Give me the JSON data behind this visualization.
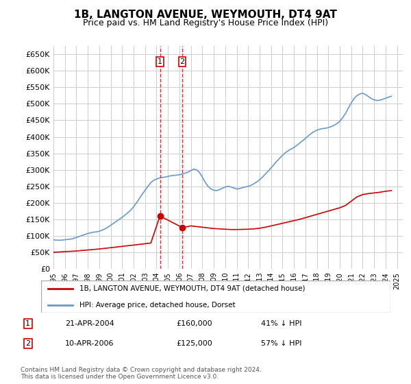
{
  "title": "1B, LANGTON AVENUE, WEYMOUTH, DT4 9AT",
  "subtitle": "Price paid vs. HM Land Registry's House Price Index (HPI)",
  "legend_label_red": "1B, LANGTON AVENUE, WEYMOUTH, DT4 9AT (detached house)",
  "legend_label_blue": "HPI: Average price, detached house, Dorset",
  "footnote": "Contains HM Land Registry data © Crown copyright and database right 2024.\nThis data is licensed under the Open Government Licence v3.0.",
  "point1_label": "1",
  "point1_date": "21-APR-2004",
  "point1_price": "£160,000",
  "point1_hpi": "41% ↓ HPI",
  "point2_label": "2",
  "point2_date": "10-APR-2006",
  "point2_price": "£125,000",
  "point2_hpi": "57% ↓ HPI",
  "ylim": [
    0,
    675000
  ],
  "yticks": [
    0,
    50000,
    100000,
    150000,
    200000,
    250000,
    300000,
    350000,
    400000,
    450000,
    500000,
    550000,
    600000,
    650000
  ],
  "xmin": 1995.0,
  "xmax": 2025.5,
  "sale1_year": 2004.3,
  "sale2_year": 2006.25,
  "sale1_price": 160000,
  "sale2_price": 125000,
  "red_color": "#cc0000",
  "blue_color": "#6699cc",
  "bg_color": "#ffffff",
  "grid_color": "#cccccc",
  "hpi_years": [
    1995.0,
    1995.25,
    1995.5,
    1995.75,
    1996.0,
    1996.25,
    1996.5,
    1996.75,
    1997.0,
    1997.25,
    1997.5,
    1997.75,
    1998.0,
    1998.25,
    1998.5,
    1998.75,
    1999.0,
    1999.25,
    1999.5,
    1999.75,
    2000.0,
    2000.25,
    2000.5,
    2000.75,
    2001.0,
    2001.25,
    2001.5,
    2001.75,
    2002.0,
    2002.25,
    2002.5,
    2002.75,
    2003.0,
    2003.25,
    2003.5,
    2003.75,
    2004.0,
    2004.25,
    2004.5,
    2004.75,
    2005.0,
    2005.25,
    2005.5,
    2005.75,
    2006.0,
    2006.25,
    2006.5,
    2006.75,
    2007.0,
    2007.25,
    2007.5,
    2007.75,
    2008.0,
    2008.25,
    2008.5,
    2008.75,
    2009.0,
    2009.25,
    2009.5,
    2009.75,
    2010.0,
    2010.25,
    2010.5,
    2010.75,
    2011.0,
    2011.25,
    2011.5,
    2011.75,
    2012.0,
    2012.25,
    2012.5,
    2012.75,
    2013.0,
    2013.25,
    2013.5,
    2013.75,
    2014.0,
    2014.25,
    2014.5,
    2014.75,
    2015.0,
    2015.25,
    2015.5,
    2015.75,
    2016.0,
    2016.25,
    2016.5,
    2016.75,
    2017.0,
    2017.25,
    2017.5,
    2017.75,
    2018.0,
    2018.25,
    2018.5,
    2018.75,
    2019.0,
    2019.25,
    2019.5,
    2019.75,
    2020.0,
    2020.25,
    2020.5,
    2020.75,
    2021.0,
    2021.25,
    2021.5,
    2021.75,
    2022.0,
    2022.25,
    2022.5,
    2022.75,
    2023.0,
    2023.25,
    2023.5,
    2023.75,
    2024.0,
    2024.25,
    2024.5
  ],
  "hpi_values": [
    88000,
    87000,
    86500,
    87000,
    88000,
    89000,
    90000,
    92000,
    95000,
    98000,
    101000,
    104000,
    107000,
    109000,
    111000,
    112000,
    114000,
    117000,
    121000,
    126000,
    132000,
    138000,
    144000,
    150000,
    156000,
    163000,
    170000,
    178000,
    188000,
    200000,
    213000,
    226000,
    238000,
    250000,
    261000,
    268000,
    272000,
    275000,
    277000,
    278000,
    280000,
    282000,
    283000,
    284000,
    285000,
    287000,
    290000,
    293000,
    298000,
    302000,
    300000,
    292000,
    278000,
    262000,
    250000,
    242000,
    238000,
    237000,
    240000,
    244000,
    248000,
    250000,
    248000,
    245000,
    242000,
    243000,
    246000,
    248000,
    250000,
    253000,
    258000,
    263000,
    270000,
    278000,
    287000,
    296000,
    306000,
    316000,
    326000,
    335000,
    344000,
    352000,
    358000,
    363000,
    368000,
    374000,
    381000,
    388000,
    395000,
    403000,
    410000,
    416000,
    420000,
    423000,
    425000,
    426000,
    428000,
    431000,
    435000,
    440000,
    447000,
    458000,
    471000,
    487000,
    503000,
    516000,
    525000,
    530000,
    532000,
    528000,
    522000,
    516000,
    512000,
    510000,
    511000,
    514000,
    517000,
    520000,
    523000
  ],
  "prop_years": [
    1995.0,
    1995.5,
    1996.0,
    1996.5,
    1997.0,
    1997.5,
    1998.0,
    1998.5,
    1999.0,
    1999.5,
    2000.0,
    2000.5,
    2001.0,
    2001.5,
    2002.0,
    2002.5,
    2003.0,
    2003.5,
    2004.3,
    2006.25,
    2007.0,
    2007.5,
    2008.0,
    2008.5,
    2009.0,
    2009.5,
    2010.0,
    2010.5,
    2011.0,
    2011.5,
    2012.0,
    2012.5,
    2013.0,
    2013.5,
    2014.0,
    2014.5,
    2015.0,
    2015.5,
    2016.0,
    2016.5,
    2017.0,
    2017.5,
    2018.0,
    2018.5,
    2019.0,
    2019.5,
    2020.0,
    2020.5,
    2021.0,
    2021.5,
    2022.0,
    2022.5,
    2023.0,
    2023.5,
    2024.0,
    2024.5
  ],
  "prop_values": [
    50000,
    51000,
    52000,
    53000,
    54000,
    55500,
    57000,
    58500,
    60000,
    62000,
    64000,
    66000,
    68000,
    70000,
    72000,
    74000,
    76000,
    78000,
    160000,
    125000,
    130000,
    128000,
    126000,
    124000,
    122000,
    121000,
    120000,
    119000,
    119000,
    119500,
    120000,
    121000,
    123000,
    126000,
    130000,
    134000,
    138000,
    142000,
    146000,
    150000,
    155000,
    160000,
    165000,
    170000,
    175000,
    180000,
    185000,
    192000,
    205000,
    218000,
    225000,
    228000,
    230000,
    232000,
    235000,
    237000
  ]
}
